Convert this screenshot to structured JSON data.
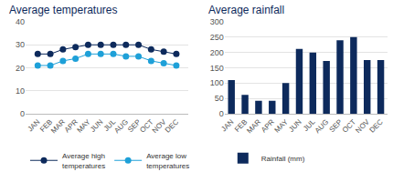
{
  "chart_data": [
    {
      "type": "line",
      "title": "Average temperatures",
      "categories": [
        "JAN",
        "FEB",
        "MAR",
        "APR",
        "MAY",
        "JUN",
        "JUL",
        "AUG",
        "SEP",
        "OCT",
        "NOV",
        "DEC"
      ],
      "series": [
        {
          "name": "Average high temperatures",
          "color": "#0d2a5c",
          "marker": "circle",
          "values": [
            26,
            26,
            28,
            29,
            30,
            30,
            30,
            30,
            30,
            28,
            27,
            26
          ]
        },
        {
          "name": "Average low temperatures",
          "color": "#1ea0d8",
          "marker": "circle",
          "values": [
            21,
            21,
            23,
            24,
            26,
            26,
            26,
            25,
            25,
            23,
            22,
            21
          ]
        }
      ],
      "ylim": [
        0,
        40
      ],
      "yticks": [
        0,
        10,
        20,
        30,
        40
      ],
      "grid": true,
      "legend": "bottom"
    },
    {
      "type": "bar",
      "title": "Average rainfall",
      "categories": [
        "JAN",
        "FEB",
        "MAR",
        "APR",
        "MAY",
        "JUN",
        "JUL",
        "AUG",
        "SEP",
        "OCT",
        "NOV",
        "DEC"
      ],
      "series": [
        {
          "name": "Rainfall (mm)",
          "color": "#0d2a5c",
          "values": [
            110,
            62,
            42,
            42,
            100,
            212,
            200,
            172,
            240,
            250,
            175,
            175
          ]
        }
      ],
      "ylim": [
        0,
        300
      ],
      "yticks": [
        0,
        50,
        100,
        150,
        200,
        250,
        300
      ],
      "grid": true,
      "legend": "bottom"
    }
  ]
}
